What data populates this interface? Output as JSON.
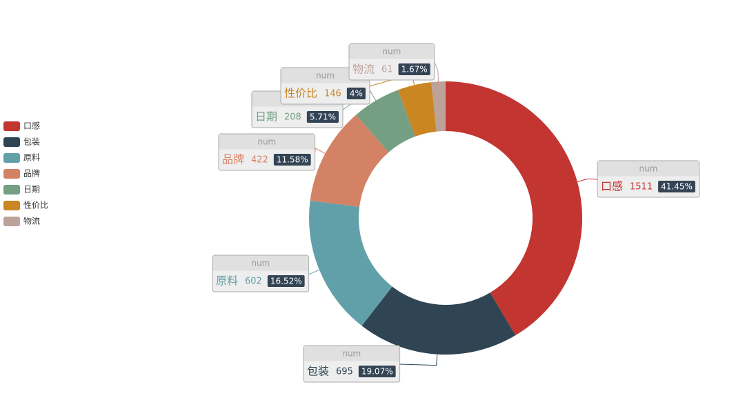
{
  "chart_data": {
    "type": "pie",
    "series_name": "num",
    "categories": [
      "口感",
      "包装",
      "原料",
      "品牌",
      "日期",
      "性价比",
      "物流"
    ],
    "values": [
      1511,
      695,
      602,
      422,
      208,
      146,
      61
    ],
    "percent_labels": [
      "41.45%",
      "19.07%",
      "16.52%",
      "11.58%",
      "5.71%",
      "4%",
      "1.67%"
    ],
    "colors": [
      "#c23531",
      "#2f4554",
      "#61a0a8",
      "#d48265",
      "#749f83",
      "#ca8622",
      "#bda29a"
    ],
    "legend": "left"
  }
}
